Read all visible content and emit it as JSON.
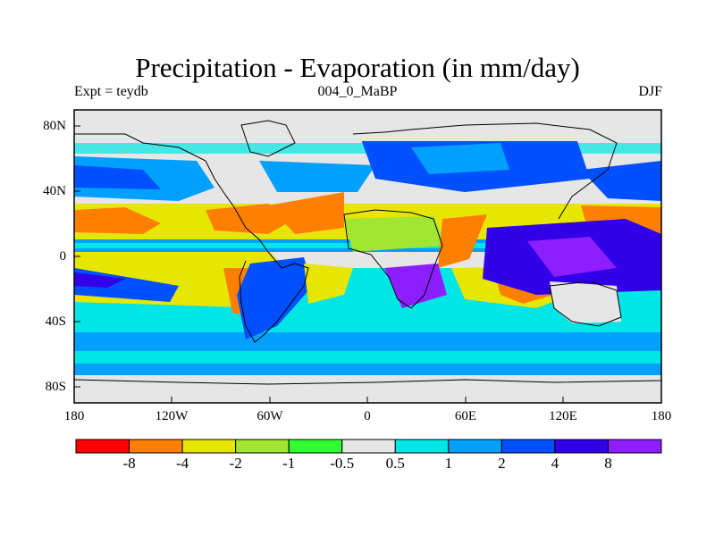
{
  "title": "Precipitation - Evaporation (in mm/day)",
  "subtitle_left": "Expt = teydb",
  "subtitle_center": "004_0_MaBP",
  "subtitle_right": "DJF",
  "map": {
    "projection": "cylindrical-equidistant",
    "lon_range": [
      -180,
      180
    ],
    "lat_range": [
      -90,
      90
    ],
    "y_ticks": [
      "80N",
      "40N",
      "0",
      "40S",
      "80S"
    ],
    "x_ticks": [
      "180",
      "120W",
      "60W",
      "0",
      "60E",
      "120E",
      "180"
    ]
  },
  "colorbar": {
    "colors": [
      "#ff0000",
      "#ff8000",
      "#e6e600",
      "#a0e632",
      "#32ff32",
      "#e6e6e6",
      "#00e6e6",
      "#00a0ff",
      "#0050ff",
      "#3200e6",
      "#8c1eff"
    ],
    "labels": [
      "-8",
      "-4",
      "-2",
      "-1",
      "-0.5",
      "0.5",
      "1",
      "2",
      "4",
      "8"
    ]
  }
}
